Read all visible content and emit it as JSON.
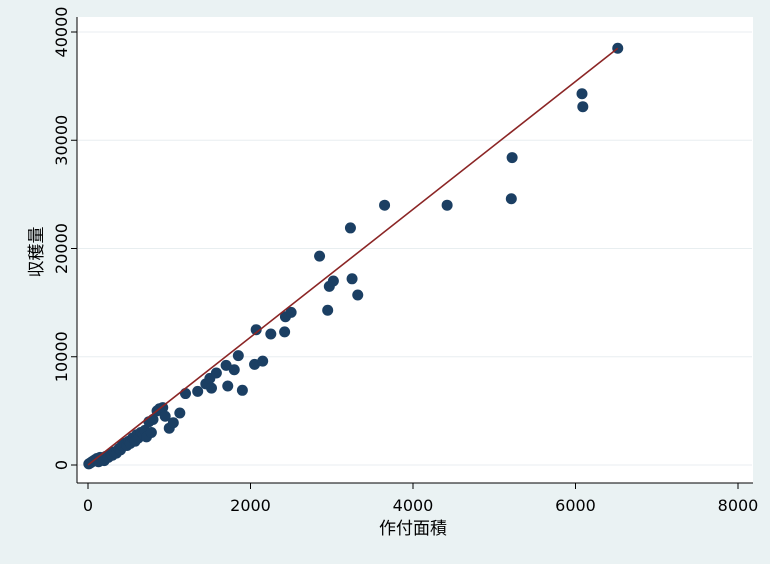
{
  "chart_data": {
    "type": "scatter",
    "title": "",
    "xlabel": "作付面積",
    "ylabel": "収穫量",
    "xlim": [
      0,
      8000
    ],
    "ylim": [
      0,
      40000
    ],
    "x_ticks": [
      0,
      2000,
      4000,
      6000,
      8000
    ],
    "y_ticks": [
      0,
      10000,
      20000,
      30000,
      40000
    ],
    "x_tick_labels": [
      "0",
      "2000",
      "4000",
      "6000",
      "8000"
    ],
    "y_tick_labels": [
      "0",
      "10000",
      "20000",
      "30000",
      "40000"
    ],
    "grid": true,
    "colors": {
      "background": "#eaf2f3",
      "plot_background": "#ffffff",
      "points": "#1b3f63",
      "fit_line": "#8b2525",
      "grid": "#e8eef0"
    },
    "series": [
      {
        "kind": "points",
        "points": [
          [
            10,
            100
          ],
          [
            30,
            200
          ],
          [
            50,
            300
          ],
          [
            70,
            400
          ],
          [
            90,
            500
          ],
          [
            110,
            600
          ],
          [
            130,
            300
          ],
          [
            150,
            700
          ],
          [
            170,
            500
          ],
          [
            200,
            400
          ],
          [
            220,
            800
          ],
          [
            250,
            700
          ],
          [
            280,
            1000
          ],
          [
            300,
            900
          ],
          [
            320,
            1200
          ],
          [
            350,
            1100
          ],
          [
            380,
            1500
          ],
          [
            400,
            1400
          ],
          [
            420,
            1800
          ],
          [
            450,
            2000
          ],
          [
            480,
            1800
          ],
          [
            500,
            2200
          ],
          [
            520,
            2000
          ],
          [
            550,
            2500
          ],
          [
            580,
            2200
          ],
          [
            600,
            2800
          ],
          [
            620,
            2500
          ],
          [
            650,
            3000
          ],
          [
            680,
            2800
          ],
          [
            700,
            3200
          ],
          [
            720,
            2600
          ],
          [
            750,
            4000
          ],
          [
            780,
            3000
          ],
          [
            800,
            4200
          ],
          [
            850,
            5000
          ],
          [
            880,
            5200
          ],
          [
            920,
            5300
          ],
          [
            950,
            4500
          ],
          [
            1000,
            3400
          ],
          [
            1050,
            3900
          ],
          [
            1130,
            4800
          ],
          [
            1200,
            6600
          ],
          [
            1350,
            6800
          ],
          [
            1450,
            7500
          ],
          [
            1500,
            8000
          ],
          [
            1520,
            7100
          ],
          [
            1580,
            8500
          ],
          [
            1700,
            9200
          ],
          [
            1720,
            7300
          ],
          [
            1800,
            8800
          ],
          [
            1850,
            10100
          ],
          [
            1900,
            6900
          ],
          [
            2050,
            9300
          ],
          [
            2070,
            12500
          ],
          [
            2150,
            9600
          ],
          [
            2250,
            12100
          ],
          [
            2420,
            12300
          ],
          [
            2430,
            13700
          ],
          [
            2500,
            14100
          ],
          [
            2850,
            19300
          ],
          [
            2950,
            14300
          ],
          [
            2970,
            16500
          ],
          [
            3020,
            17000
          ],
          [
            3230,
            21900
          ],
          [
            3250,
            17200
          ],
          [
            3320,
            15700
          ],
          [
            3650,
            24000
          ],
          [
            4420,
            24000
          ],
          [
            5210,
            24600
          ],
          [
            5220,
            28400
          ],
          [
            6080,
            34300
          ],
          [
            6090,
            33100
          ],
          [
            6520,
            38500
          ]
        ]
      },
      {
        "kind": "line",
        "points": [
          [
            0,
            0
          ],
          [
            6520,
            38500
          ]
        ]
      }
    ]
  }
}
